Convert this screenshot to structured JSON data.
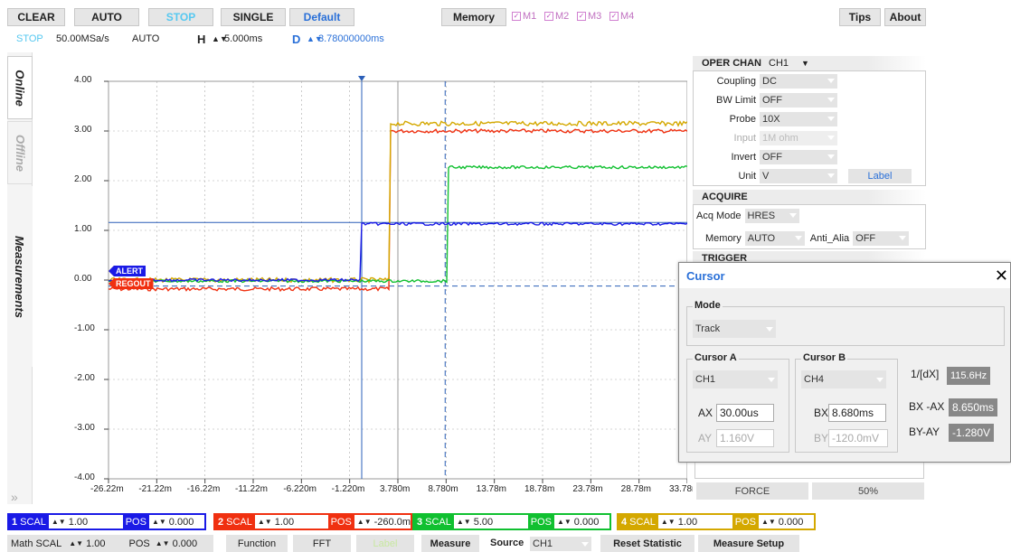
{
  "toolbar": {
    "clear": "CLEAR",
    "auto": "AUTO",
    "stop": "STOP",
    "single": "SINGLE",
    "default": "Default",
    "memory": "Memory",
    "m1": "M1",
    "m2": "M2",
    "m3": "M3",
    "m4": "M4",
    "tips": "Tips",
    "about": "About"
  },
  "status": {
    "state": "STOP",
    "rate": "50.00MSa/s",
    "mode": "AUTO",
    "h_label": "H",
    "h_value": "5.000ms",
    "d_label": "D",
    "d_value": "3.78000000ms"
  },
  "side_tabs": {
    "online": "Online",
    "offline": "Offline",
    "measurements": "Measurements"
  },
  "plot": {
    "y_ticks": [
      "4.00",
      "3.00",
      "2.00",
      "1.00",
      "0.00",
      "-1.00",
      "-2.00",
      "-3.00",
      "-4.00"
    ],
    "x_ticks": [
      "-26.22m",
      "-21.22m",
      "-16.22m",
      "-11.22m",
      "-6.220m",
      "-1.220m",
      "3.780m",
      "8.780m",
      "13.78m",
      "18.78m",
      "23.78m",
      "28.78m",
      "33.78m"
    ],
    "labels": {
      "alert": "ALERT",
      "regout": "REGOUT"
    },
    "colors": {
      "ch1": "#1a1ae6",
      "ch2": "#f03010",
      "ch3": "#10c030",
      "ch4": "#d4a800"
    }
  },
  "panel": {
    "oper_chan_label": "OPER CHAN",
    "oper_chan_value": "CH1",
    "coupling_label": "Coupling",
    "coupling_value": "DC",
    "bw_label": "BW Limit",
    "bw_value": "OFF",
    "probe_label": "Probe",
    "probe_value": "10X",
    "input_label": "Input",
    "input_value": "1M ohm",
    "invert_label": "Invert",
    "invert_value": "OFF",
    "unit_label": "Unit",
    "unit_value": "V",
    "label_button": "Label",
    "acquire_header": "ACQUIRE",
    "acq_mode_label": "Acq Mode",
    "acq_mode_value": "HRES",
    "memory_label": "Memory",
    "memory_value": "AUTO",
    "anti_alia_label": "Anti_Alia",
    "anti_alia_value": "OFF",
    "trigger_header": "TRIGGER",
    "force": "FORCE",
    "level": "50%"
  },
  "cursor": {
    "title": "Cursor",
    "mode_label": "Mode",
    "mode_value": "Track",
    "a_label": "Cursor A",
    "a_source": "CH1",
    "ax_label": "AX",
    "ax_value": "30.00us",
    "ay_label": "AY",
    "ay_value": "1.160V",
    "b_label": "Cursor B",
    "b_source": "CH4",
    "bx_label": "BX",
    "bx_value": "8.680ms",
    "by_label": "BY",
    "by_value": "-120.0mV",
    "inv_dx_label": "1/[dX]",
    "inv_dx_value": "115.6Hz",
    "bx_ax_label": "BX -AX",
    "bx_ax_value": "8.650ms",
    "by_ay_label": "BY-AY",
    "by_ay_value": "-1.280V"
  },
  "channels": [
    {
      "num": "1",
      "scal_label": "SCAL",
      "scal": "1.00",
      "pos_label": "POS",
      "pos": "0.000",
      "color": "#1a1ae6"
    },
    {
      "num": "2",
      "scal_label": "SCAL",
      "scal": "1.00",
      "pos_label": "POS",
      "pos": "-260.0m",
      "color": "#f03010"
    },
    {
      "num": "3",
      "scal_label": "SCAL",
      "scal": "5.00",
      "pos_label": "POS",
      "pos": "0.000",
      "color": "#10c030"
    },
    {
      "num": "4",
      "scal_label": "SCAL",
      "scal": "1.00",
      "pos_label": "POS",
      "pos": "0.000",
      "color": "#d4a800"
    }
  ],
  "bottom": {
    "math_label": "Math SCAL",
    "math_scal": "1.00",
    "math_pos_label": "POS",
    "math_pos": "0.000",
    "function": "Function",
    "fft": "FFT",
    "label": "Label",
    "measure": "Measure",
    "source_label": "Source",
    "source_value": "CH1",
    "reset": "Reset Statistic",
    "measure_setup": "Measure Setup"
  }
}
